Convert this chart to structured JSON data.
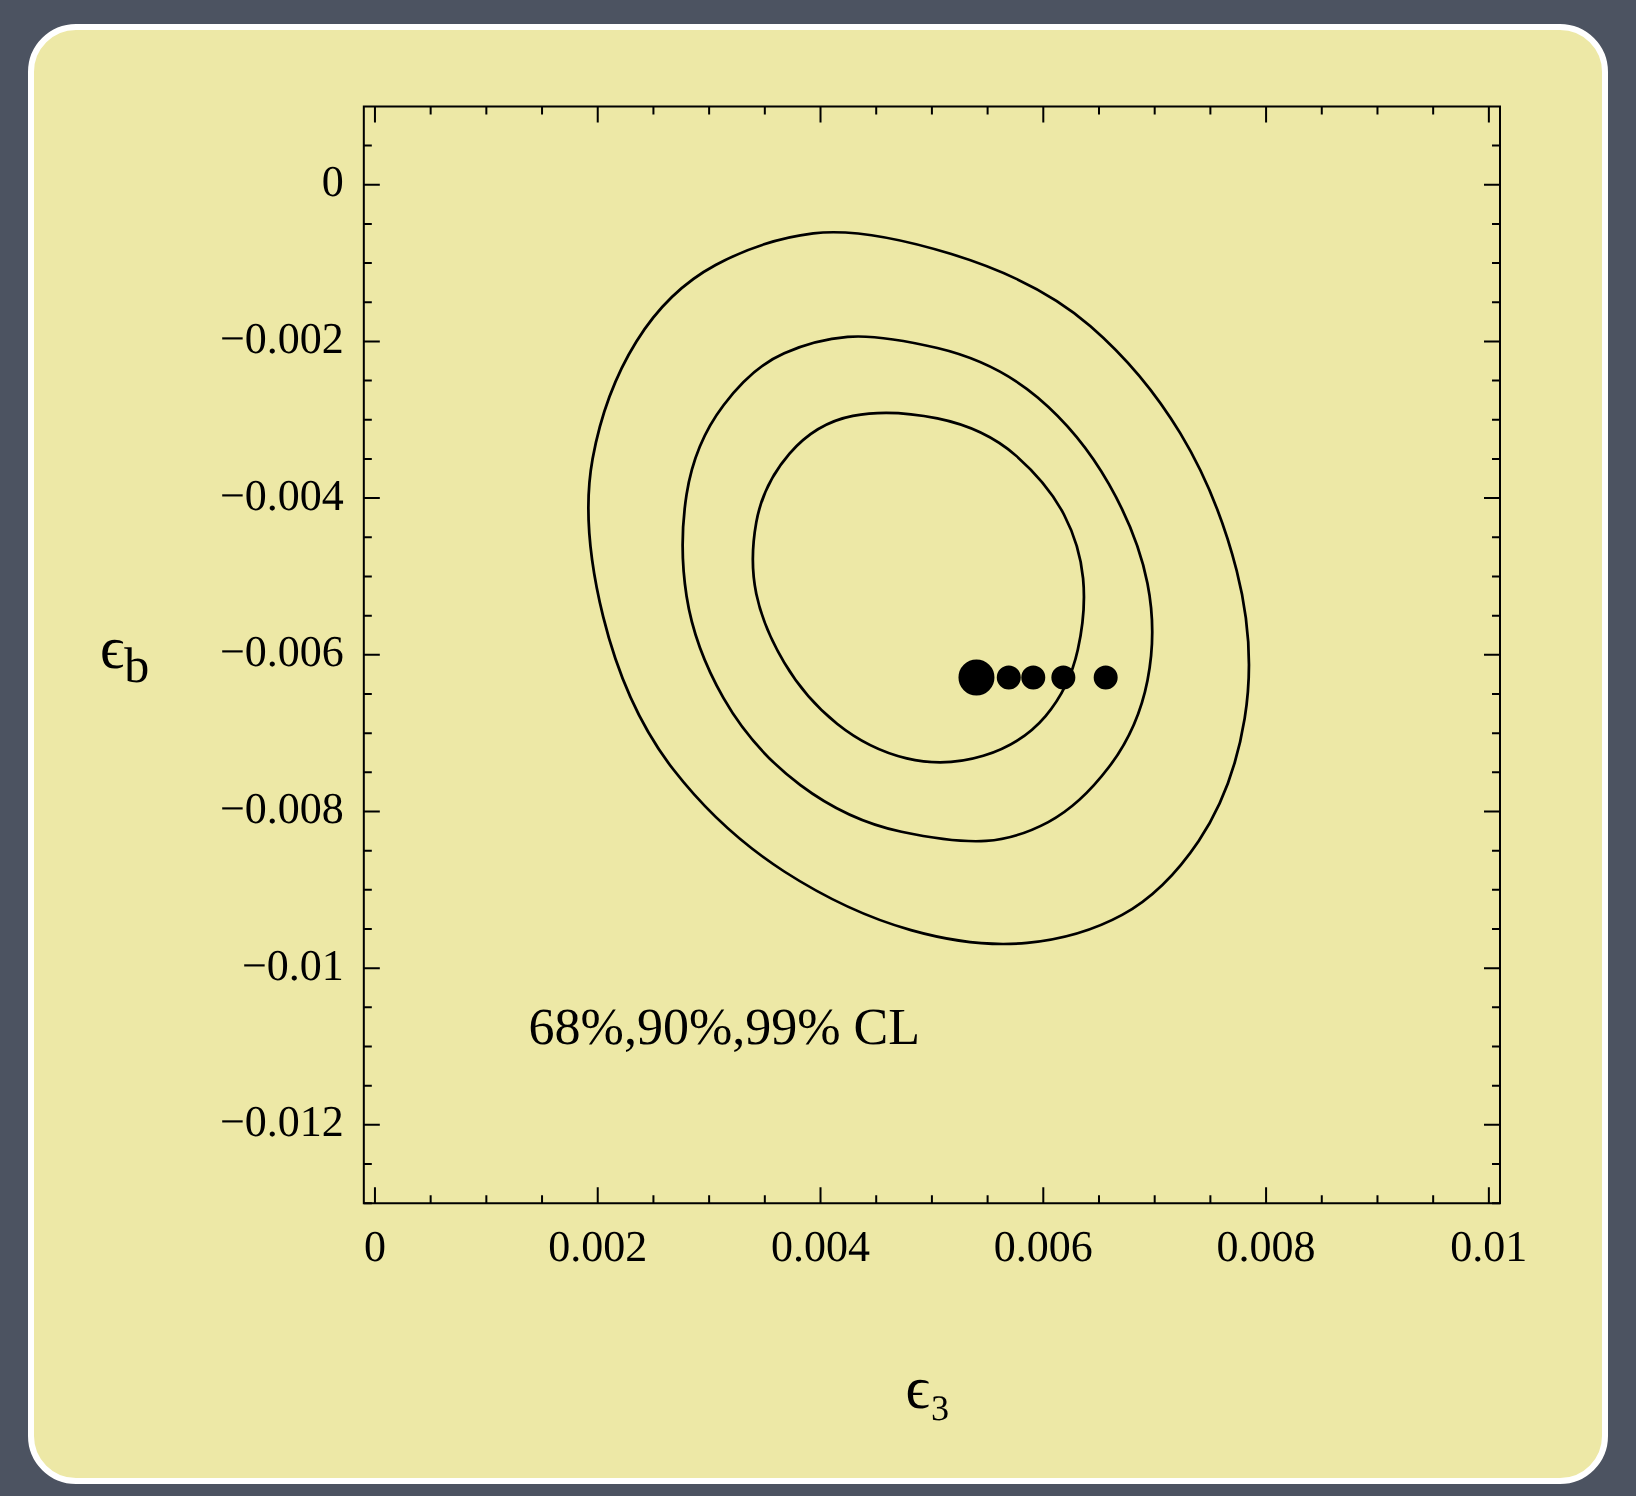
{
  "chart_data": {
    "type": "scatter",
    "xlabel": "ϵ₃",
    "ylabel": "ϵ$_{b}$",
    "annotations": [
      "68%,90%,99% CL"
    ],
    "xlim": [
      -0.0001,
      0.0101
    ],
    "ylim": [
      -0.013,
      0.001
    ],
    "xticks": [
      {
        "value": 0,
        "label": "0"
      },
      {
        "value": 0.0005,
        "label": null
      },
      {
        "value": 0.001,
        "label": null
      },
      {
        "value": 0.0015,
        "label": null
      },
      {
        "value": 0.002,
        "label": "0.002"
      },
      {
        "value": 0.0025,
        "label": null
      },
      {
        "value": 0.003,
        "label": null
      },
      {
        "value": 0.0035,
        "label": null
      },
      {
        "value": 0.004,
        "label": "0.004"
      },
      {
        "value": 0.0045,
        "label": null
      },
      {
        "value": 0.005,
        "label": null
      },
      {
        "value": 0.0055,
        "label": null
      },
      {
        "value": 0.006,
        "label": "0.006"
      },
      {
        "value": 0.0065,
        "label": null
      },
      {
        "value": 0.007,
        "label": null
      },
      {
        "value": 0.0075,
        "label": null
      },
      {
        "value": 0.008,
        "label": "0.008"
      },
      {
        "value": 0.0085,
        "label": null
      },
      {
        "value": 0.009,
        "label": null
      },
      {
        "value": 0.0095,
        "label": null
      },
      {
        "value": 0.01,
        "label": "0.01"
      }
    ],
    "yticks": [
      {
        "value": -0.013,
        "label": null
      },
      {
        "value": -0.0125,
        "label": null
      },
      {
        "value": -0.012,
        "label": "−0.012"
      },
      {
        "value": -0.0115,
        "label": null
      },
      {
        "value": -0.011,
        "label": null
      },
      {
        "value": -0.0105,
        "label": null
      },
      {
        "value": -0.01,
        "label": "−0.01"
      },
      {
        "value": -0.0095,
        "label": null
      },
      {
        "value": -0.009,
        "label": null
      },
      {
        "value": -0.0085,
        "label": null
      },
      {
        "value": -0.008,
        "label": "−0.008"
      },
      {
        "value": -0.0075,
        "label": null
      },
      {
        "value": -0.007,
        "label": null
      },
      {
        "value": -0.0065,
        "label": null
      },
      {
        "value": -0.006,
        "label": "−0.006"
      },
      {
        "value": -0.0055,
        "label": null
      },
      {
        "value": -0.005,
        "label": null
      },
      {
        "value": -0.0045,
        "label": null
      },
      {
        "value": -0.004,
        "label": "−0.004"
      },
      {
        "value": -0.0035,
        "label": null
      },
      {
        "value": -0.003,
        "label": null
      },
      {
        "value": -0.0025,
        "label": null
      },
      {
        "value": -0.002,
        "label": "−0.002"
      },
      {
        "value": -0.0015,
        "label": null
      },
      {
        "value": -0.001,
        "label": null
      },
      {
        "value": -0.0005,
        "label": null
      },
      {
        "value": 0,
        "label": "0"
      },
      {
        "value": 0.0005,
        "label": null
      }
    ],
    "grid": false,
    "legend": false,
    "series": [
      {
        "type": "scatter",
        "marker": "circle",
        "color": "#000000",
        "x": [
          0.0054
        ],
        "values": [
          -0.00629
        ]
      },
      {
        "type": "scatter",
        "marker": "circle",
        "color": "#000000",
        "x": [
          0.00569,
          0.00591,
          0.00618,
          0.00656
        ],
        "values": [
          -0.00629,
          -0.00629,
          -0.00629,
          -0.00629
        ]
      }
    ]
  }
}
